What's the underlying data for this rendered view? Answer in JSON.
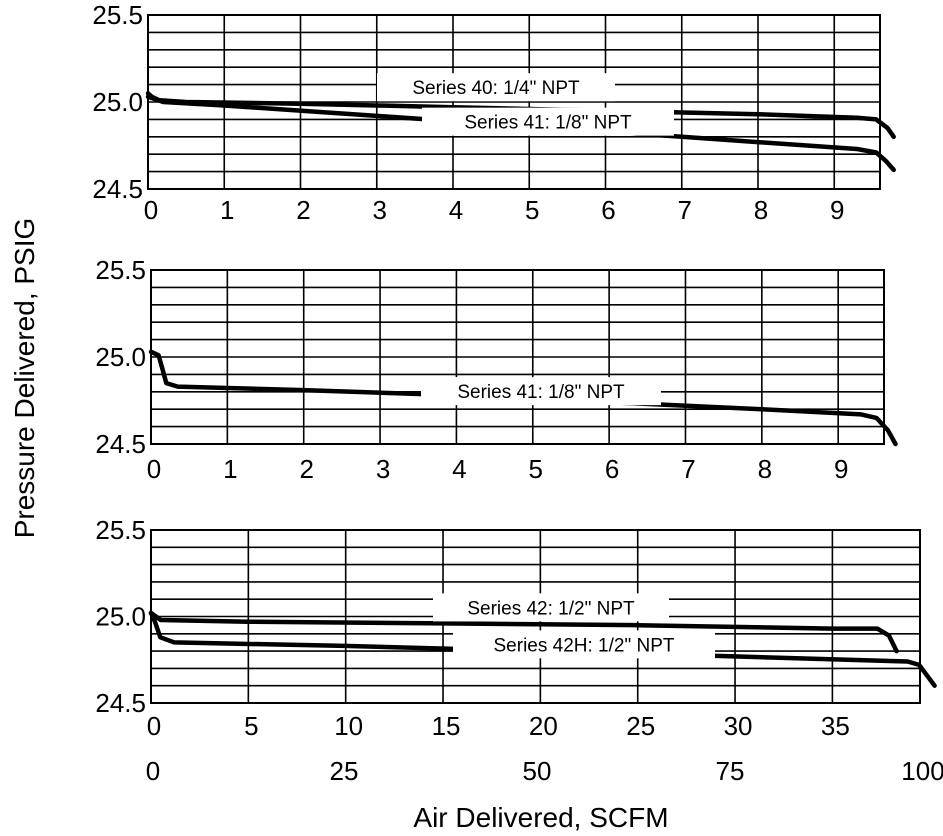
{
  "ylabel": "Pressure Delivered, PSIG",
  "xlabel": "Air Delivered, SCFM",
  "chart_data": [
    {
      "type": "line",
      "xlim": [
        0,
        9.6
      ],
      "ylim": [
        24.5,
        25.5
      ],
      "x_ticks": [
        0,
        1,
        2,
        3,
        4,
        5,
        6,
        7,
        8,
        9
      ],
      "y_ticks": [
        24.5,
        25.0,
        25.5
      ],
      "y_tick_labels": [
        "24.5",
        "25.0",
        "25.5"
      ],
      "grid": true,
      "series": [
        {
          "name": "Series 40: 1/4\" NPT",
          "points": [
            [
              0,
              25.05
            ],
            [
              0.05,
              25.03
            ],
            [
              0.15,
              25.01
            ],
            [
              0.5,
              25.0
            ],
            [
              2,
              24.99
            ],
            [
              4,
              24.97
            ],
            [
              6,
              24.95
            ],
            [
              8,
              24.93
            ],
            [
              9.3,
              24.91
            ],
            [
              9.55,
              24.9
            ],
            [
              9.7,
              24.85
            ],
            [
              9.78,
              24.8
            ]
          ]
        },
        {
          "name": "Series 41: 1/8\" NPT",
          "points": [
            [
              0,
              25.03
            ],
            [
              0.2,
              25.0
            ],
            [
              1,
              24.98
            ],
            [
              3,
              24.92
            ],
            [
              5,
              24.86
            ],
            [
              7,
              24.8
            ],
            [
              9.3,
              24.73
            ],
            [
              9.55,
              24.71
            ],
            [
              9.68,
              24.66
            ],
            [
              9.78,
              24.61
            ]
          ]
        }
      ]
    },
    {
      "type": "line",
      "xlim": [
        0,
        9.6
      ],
      "ylim": [
        24.5,
        25.5
      ],
      "x_ticks": [
        0,
        1,
        2,
        3,
        4,
        5,
        6,
        7,
        8,
        9
      ],
      "y_ticks": [
        24.5,
        25.0,
        25.5
      ],
      "y_tick_labels": [
        "24.5",
        "25.0",
        "25.5"
      ],
      "grid": true,
      "series": [
        {
          "name": "Series 41: 1/8\" NPT",
          "points": [
            [
              0,
              25.03
            ],
            [
              0.1,
              25.01
            ],
            [
              0.15,
              24.93
            ],
            [
              0.2,
              24.85
            ],
            [
              0.35,
              24.83
            ],
            [
              2,
              24.81
            ],
            [
              4,
              24.78
            ],
            [
              6,
              24.74
            ],
            [
              8,
              24.7
            ],
            [
              9.3,
              24.67
            ],
            [
              9.5,
              24.65
            ],
            [
              9.65,
              24.58
            ],
            [
              9.75,
              24.5
            ]
          ]
        }
      ]
    },
    {
      "type": "line",
      "xlim": [
        0,
        39.5
      ],
      "ylim": [
        24.5,
        25.5
      ],
      "x_ticks": [
        0,
        5,
        10,
        15,
        20,
        25,
        30,
        35
      ],
      "x2_ticks": [
        0,
        25,
        50,
        75,
        100
      ],
      "y_ticks": [
        24.5,
        25.0,
        25.5
      ],
      "y_tick_labels": [
        "24.5",
        "25.0",
        "25.5"
      ],
      "grid": true,
      "series": [
        {
          "name": "Series 42: 1/2\" NPT",
          "axis": "x",
          "points": [
            [
              0,
              25.02
            ],
            [
              0.5,
              24.98
            ],
            [
              5,
              24.97
            ],
            [
              15,
              24.96
            ],
            [
              25,
              24.95
            ],
            [
              35,
              24.93
            ],
            [
              37.3,
              24.93
            ],
            [
              37.9,
              24.89
            ],
            [
              38.3,
              24.8
            ]
          ]
        },
        {
          "name": "Series 42H: 1/2\" NPT",
          "axis": "x2",
          "points": [
            [
              0,
              25.02
            ],
            [
              0.5,
              24.97
            ],
            [
              1.2,
              24.88
            ],
            [
              3,
              24.85
            ],
            [
              25,
              24.83
            ],
            [
              50,
              24.8
            ],
            [
              75,
              24.77
            ],
            [
              98,
              24.74
            ],
            [
              99.5,
              24.72
            ],
            [
              100.5,
              24.66
            ],
            [
              101.5,
              24.6
            ]
          ]
        }
      ]
    }
  ]
}
